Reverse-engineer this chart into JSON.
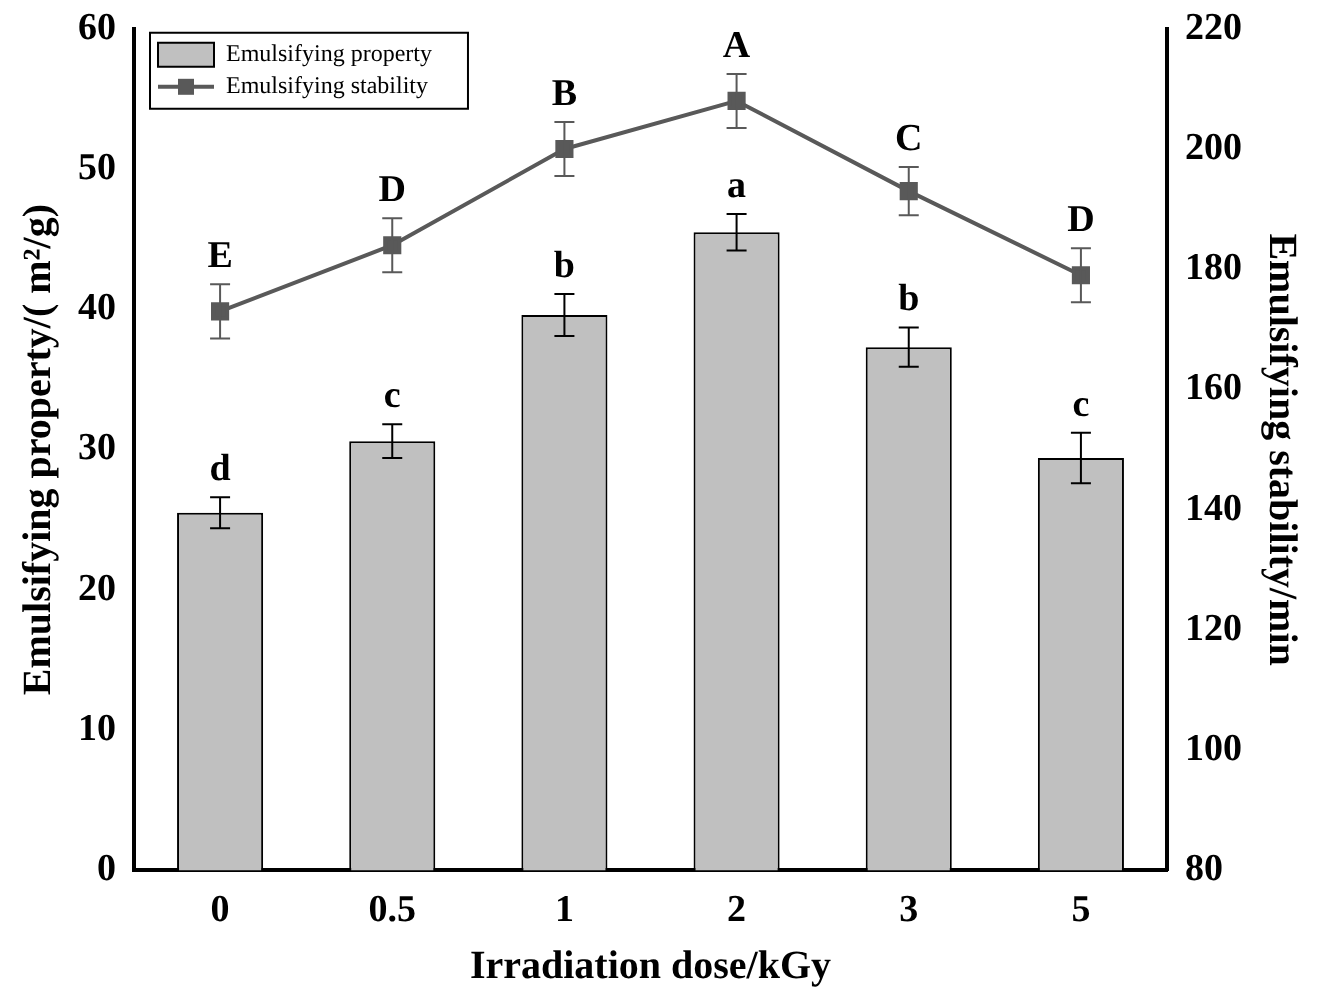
{
  "chart_data": {
    "type": "bar",
    "xlabel": "Irradiation dose/kGy",
    "ylabel": "Emulsifying property/( m²/g)",
    "y2label": "Emulsifying stability/min",
    "categories": [
      "0",
      "0.5",
      "1",
      "2",
      "3",
      "5"
    ],
    "series": [
      {
        "name": "Emulsifying property",
        "color": "#c0c0c0",
        "values": [
          25.5,
          30.6,
          39.6,
          45.5,
          37.3,
          29.4
        ],
        "errors": [
          1.1,
          1.2,
          1.5,
          1.3,
          1.4,
          1.8
        ]
      },
      {
        "name": "Emulsifying stability",
        "type": "line",
        "axis": "y2",
        "color": "#595959",
        "marker": "square",
        "values": [
          173,
          184,
          200,
          208,
          193,
          179
        ],
        "errors": [
          4.5,
          4.5,
          4.5,
          4.5,
          4,
          4.5
        ]
      }
    ],
    "ylim": [
      0,
      60
    ],
    "yticks": [
      0,
      10,
      20,
      30,
      40,
      50,
      60
    ],
    "y2lim": [
      80,
      220
    ],
    "y2ticks": [
      80,
      100,
      120,
      140,
      160,
      180,
      200,
      220
    ],
    "legend": "top left",
    "grid": false,
    "annotations": [
      "d",
      "c",
      "b",
      "a",
      "b",
      "c",
      "E",
      "D",
      "B",
      "A",
      "C",
      "D"
    ]
  }
}
